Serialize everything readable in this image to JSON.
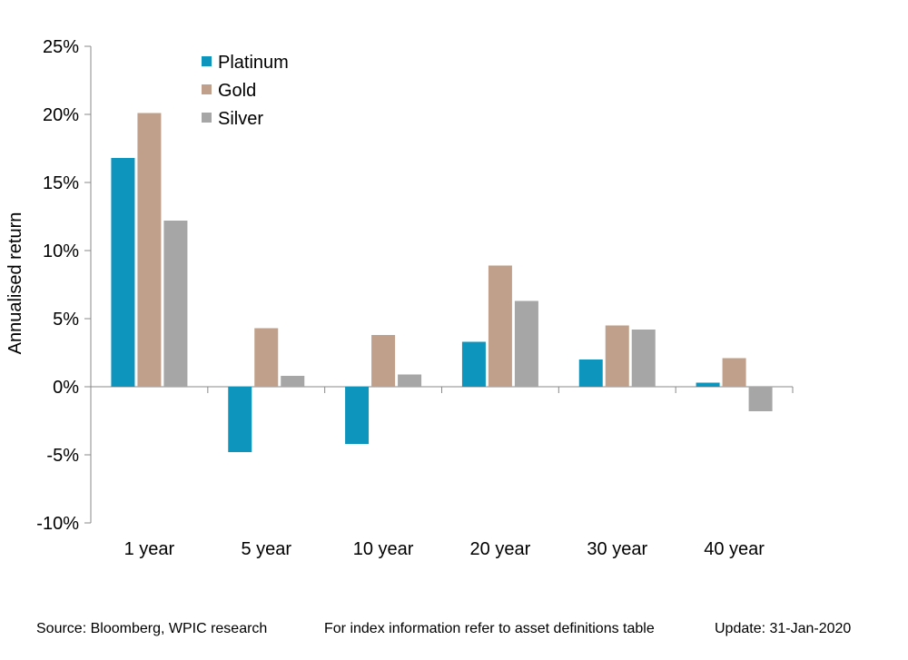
{
  "chart_data": {
    "type": "bar",
    "title": "",
    "xlabel": "",
    "ylabel": "Annualised return",
    "categories": [
      "1 year",
      "5 year",
      "10 year",
      "20 year",
      "30 year",
      "40 year"
    ],
    "series": [
      {
        "name": "Platinum",
        "color": "#0e95bd",
        "values": [
          16.8,
          -4.8,
          -4.2,
          3.3,
          2.0,
          0.3
        ]
      },
      {
        "name": "Gold",
        "color": "#c0a08a",
        "values": [
          20.1,
          4.3,
          3.8,
          8.9,
          4.5,
          2.1
        ]
      },
      {
        "name": "Silver",
        "color": "#a6a6a6",
        "values": [
          12.2,
          0.8,
          0.9,
          6.3,
          4.2,
          -1.8
        ]
      }
    ],
    "ylim": [
      -10,
      25
    ],
    "yticks": [
      -10,
      -5,
      0,
      5,
      10,
      15,
      20,
      25
    ],
    "ytick_labels": [
      "-10%",
      "-5%",
      "0%",
      "5%",
      "10%",
      "15%",
      "20%",
      "25%"
    ],
    "grid": false,
    "legend_position": "top-left"
  },
  "footer": {
    "source": "Source: Bloomberg, WPIC research",
    "note": "For index information refer to asset definitions table",
    "update": "Update: 31-Jan-2020"
  }
}
